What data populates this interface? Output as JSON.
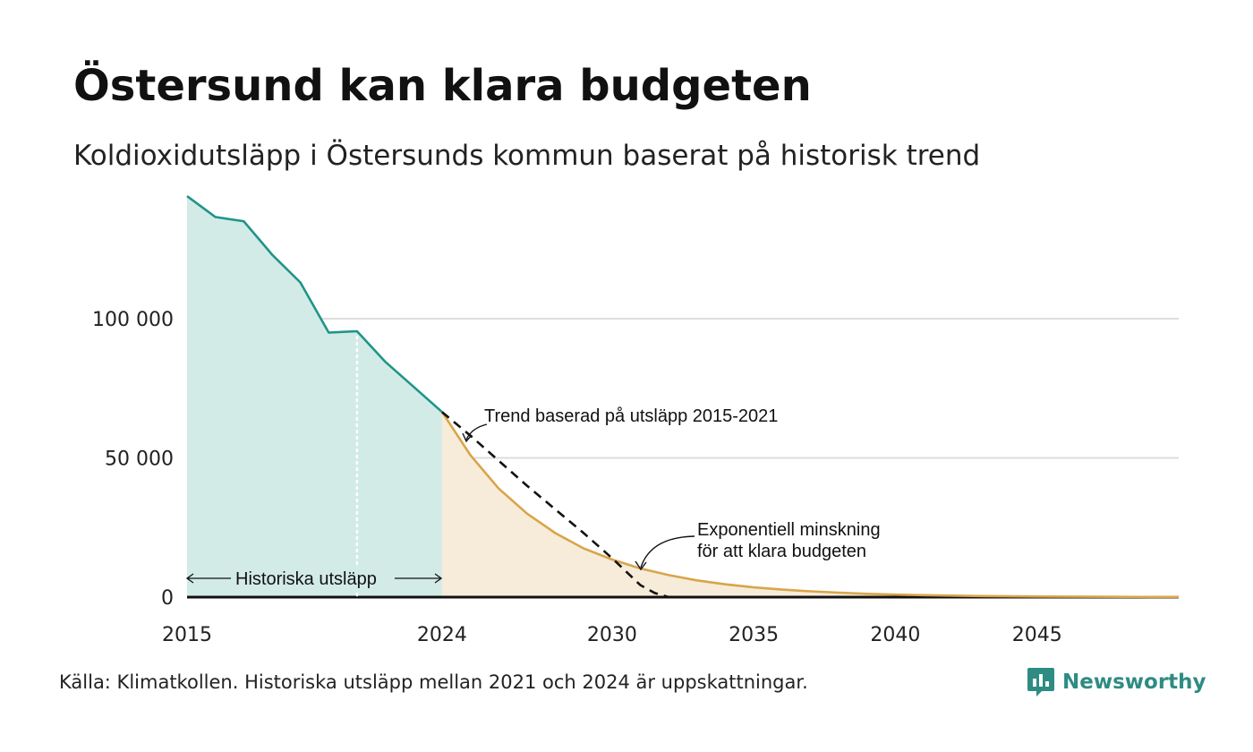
{
  "title": "Östersund kan klara budgeten",
  "subtitle": "Koldioxidutsläpp i Östersunds kommun baserat på historisk trend",
  "source": "Källa: Klimatkollen. Historiska utsläpp mellan 2021 och 2024 är uppskattningar.",
  "brand": {
    "name": "Newsworthy",
    "icon": "newsworthy-chart-bubble-icon",
    "color": "#2e8c82"
  },
  "colors": {
    "historical_line": "#1f9488",
    "historical_fill": "#d2ebe7",
    "budget_line": "#d9a54a",
    "budget_fill": "#f6ecd9",
    "trend_line": "#111111",
    "grid": "#dddddd",
    "baseline": "#111111"
  },
  "chart_data": {
    "type": "area",
    "xlim": [
      2015,
      2050
    ],
    "ylim": [
      0,
      145000
    ],
    "x_ticks": [
      2015,
      2024,
      2030,
      2035,
      2040,
      2045
    ],
    "x_tick_labels": [
      "2015",
      "2024",
      "2030",
      "2035",
      "2040",
      "2045"
    ],
    "y_ticks": [
      0,
      50000,
      100000
    ],
    "y_tick_labels": [
      "0",
      "50 000",
      "100 000"
    ],
    "grid": true,
    "series": [
      {
        "key": "historical",
        "style": "area",
        "x": [
          2015,
          2016,
          2017,
          2018,
          2019,
          2020,
          2021,
          2022,
          2023,
          2024
        ],
        "y": [
          144000,
          136500,
          135000,
          123000,
          113000,
          95000,
          95500,
          84500,
          75500,
          66500
        ]
      },
      {
        "key": "budget",
        "style": "area",
        "x": [
          2024,
          2025,
          2026,
          2027,
          2028,
          2029,
          2030,
          2031,
          2032,
          2033,
          2034,
          2035,
          2036,
          2037,
          2038,
          2039,
          2040,
          2041,
          2042,
          2043,
          2044,
          2045,
          2046,
          2047,
          2048,
          2049,
          2050
        ],
        "y": [
          66500,
          51000,
          39000,
          30000,
          23000,
          17500,
          13500,
          10300,
          7900,
          6000,
          4600,
          3500,
          2700,
          2100,
          1600,
          1200,
          900,
          700,
          550,
          400,
          300,
          230,
          180,
          140,
          100,
          80,
          60
        ]
      },
      {
        "key": "trend",
        "style": "dashed",
        "x": [
          2024,
          2025,
          2026,
          2027,
          2028,
          2029,
          2030,
          2031,
          2031.5,
          2032,
          2050
        ],
        "y": [
          66500,
          58000,
          49000,
          40000,
          31500,
          23000,
          14000,
          4300,
          1500,
          0,
          0
        ]
      }
    ],
    "markers": [
      {
        "x": 2021,
        "style": "dotted-vertical"
      }
    ],
    "annotations": {
      "trend": "Trend baserad på utsläpp 2015-2021",
      "budget_line1": "Exponentiell minskning",
      "budget_line2": "för att klara budgeten",
      "historical": "Historiska utsläpp"
    }
  }
}
